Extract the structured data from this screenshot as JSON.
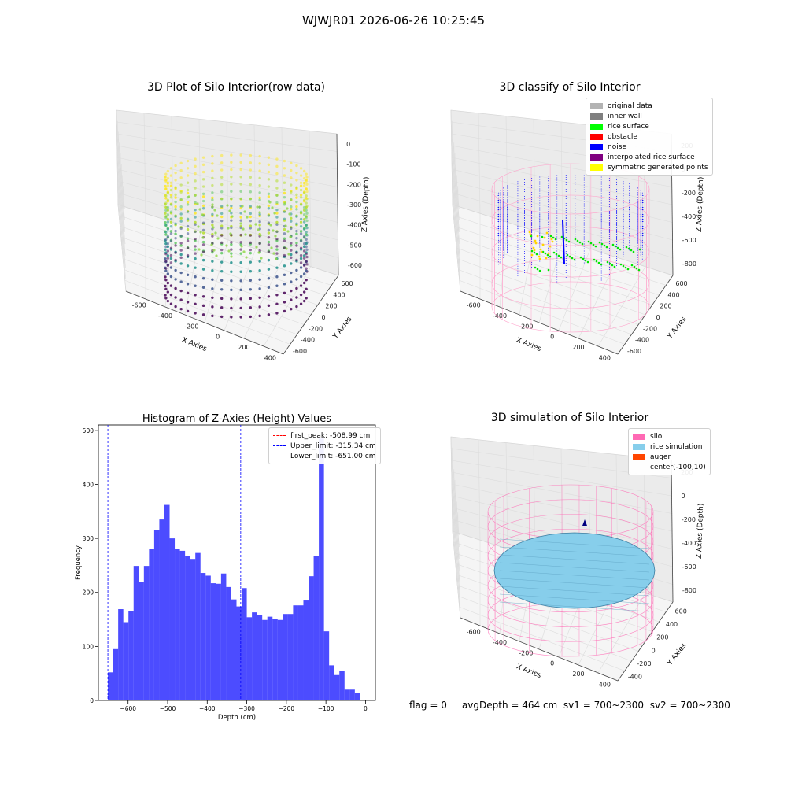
{
  "suptitle": "WJWJR01 2026-06-26 10:25:45",
  "panels": {
    "raw": {
      "title": "3D Plot of Silo Interior(row data)",
      "xlabel": "X Axies",
      "ylabel": "Y Axies",
      "zlabel": "Z Axies (Depth)",
      "xticks": [
        "-600",
        "-400",
        "-200",
        "0",
        "200",
        "400"
      ],
      "yticks": [
        "-600",
        "-400",
        "-200",
        "0",
        "200",
        "400",
        "600"
      ],
      "zticks": [
        "0",
        "-100",
        "-200",
        "-300",
        "-400",
        "-500",
        "-600"
      ]
    },
    "classify": {
      "title": "3D classify of Silo Interior",
      "xlabel": "X Axies",
      "ylabel": "Y Axies",
      "zlabel": "Z Axies (Depth)",
      "xticks": [
        "-600",
        "-400",
        "-200",
        "0",
        "200",
        "400"
      ],
      "yticks": [
        "-600",
        "-400",
        "-200",
        "0",
        "200",
        "400",
        "600"
      ],
      "zticks": [
        "200",
        "0",
        "-200",
        "-400",
        "-600",
        "-800"
      ],
      "legend": [
        {
          "label": "original data",
          "color": "#b3b3b3"
        },
        {
          "label": "inner wall",
          "color": "#808080"
        },
        {
          "label": "rice surface",
          "color": "#00ff00"
        },
        {
          "label": "obstacle",
          "color": "#ff0000"
        },
        {
          "label": "noise",
          "color": "#0000ff"
        },
        {
          "label": "interpolated rice surface",
          "color": "#800080"
        },
        {
          "label": "symmetric generated points",
          "color": "#ffff00"
        }
      ]
    },
    "simulation": {
      "title": "3D simulation of Silo Interior",
      "xlabel": "X Axies",
      "ylabel": "Y Axies",
      "zlabel": "Z Axies (Depth)",
      "xticks": [
        "-600",
        "-400",
        "-200",
        "0",
        "200",
        "400"
      ],
      "yticks": [
        "-400",
        "-200",
        "0",
        "200",
        "400",
        "600"
      ],
      "zticks": [
        "200",
        "0",
        "-200",
        "-400",
        "-600",
        "-800"
      ],
      "legend": [
        {
          "label": "silo",
          "color": "#ff69b4"
        },
        {
          "label": "rice simulation",
          "color": "#87ceeb"
        },
        {
          "label": "auger",
          "color": "#ff4500"
        },
        {
          "label": "center(-100,10)",
          "color": ""
        }
      ]
    }
  },
  "status": {
    "flag": "flag = 0",
    "avg": "avgDepth = 464 cm",
    "sv1": "sv1 = 700~2300",
    "sv2": "sv2 = 700~2300"
  },
  "chart_data": {
    "type": "bar",
    "title": "Histogram of Z-Axies (Height) Values",
    "xlabel": "Depth (cm)",
    "ylabel": "Frequency",
    "xlim": [
      -675,
      25
    ],
    "ylim": [
      0,
      510
    ],
    "xticks": [
      -600,
      -500,
      -400,
      -300,
      -200,
      -100,
      0
    ],
    "yticks": [
      0,
      100,
      200,
      300,
      400,
      500
    ],
    "bar_color": "#0000ff",
    "bar_start": -651,
    "bar_width": 13,
    "values": [
      52,
      95,
      169,
      145,
      165,
      249,
      220,
      249,
      280,
      316,
      335,
      362,
      300,
      281,
      277,
      267,
      262,
      273,
      236,
      231,
      217,
      216,
      235,
      210,
      187,
      174,
      208,
      154,
      163,
      158,
      149,
      155,
      151,
      149,
      160,
      160,
      176,
      176,
      185,
      230,
      267,
      485,
      128,
      65,
      47,
      55,
      20,
      20,
      14
    ],
    "vlines": [
      {
        "x": -508.99,
        "color": "#ff0000",
        "label": "first_peak: -508.99 cm"
      },
      {
        "x": -315.34,
        "color": "#0000ff",
        "label": "Upper_limit: -315.34 cm"
      },
      {
        "x": -651.0,
        "color": "#0000ff",
        "label": "Lower_limit: -651.00 cm"
      }
    ]
  }
}
